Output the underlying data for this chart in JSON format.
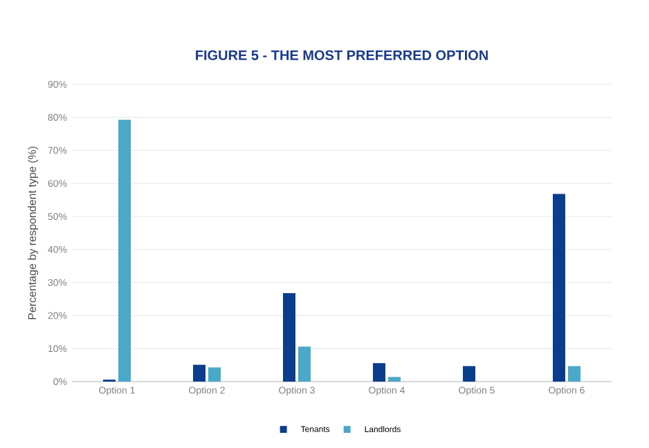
{
  "chart_data": {
    "type": "bar",
    "title": "FIGURE 5 - THE MOST PREFERRED OPTION",
    "ylabel": "Percentage by respondent type (%)",
    "categories": [
      "Option 1",
      "Option 2",
      "Option 3",
      "Option 4",
      "Option 5",
      "Option 6"
    ],
    "series": [
      {
        "name": "Tenants",
        "color": "#0b3d8f",
        "values": [
          0.6,
          5.1,
          26.8,
          5.6,
          4.7,
          56.8
        ]
      },
      {
        "name": "Landlords",
        "color": "#4aa8c8",
        "values": [
          79.3,
          4.3,
          10.6,
          1.4,
          0,
          4.7
        ]
      }
    ],
    "ylim": [
      0,
      90
    ],
    "yticks": [
      {
        "value": 0,
        "label": "0%"
      },
      {
        "value": 10,
        "label": "10%"
      },
      {
        "value": 20,
        "label": "20%"
      },
      {
        "value": 30,
        "label": "30%"
      },
      {
        "value": 40,
        "label": "40%"
      },
      {
        "value": 50,
        "label": "50%"
      },
      {
        "value": 60,
        "label": "60%"
      },
      {
        "value": 70,
        "label": "70%"
      },
      {
        "value": 80,
        "label": "80%"
      },
      {
        "value": 90,
        "label": "90%"
      }
    ],
    "grid": "y",
    "legend": "bottom"
  }
}
